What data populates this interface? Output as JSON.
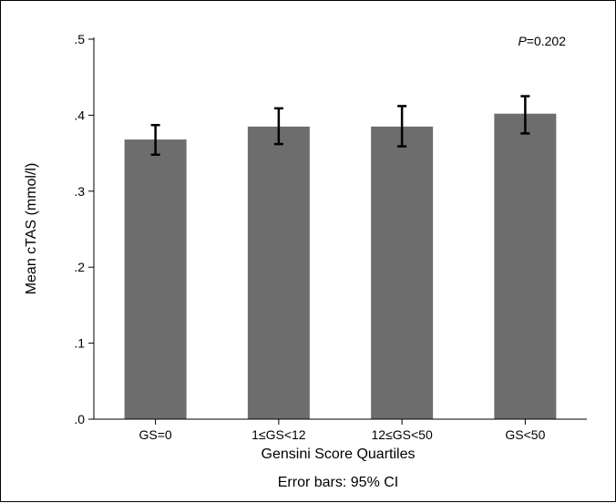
{
  "chart_data": {
    "type": "bar",
    "title": "",
    "annotation": {
      "prefix": "P",
      "text": "=0.202"
    },
    "categories": [
      "GS=0",
      "1≤GS<12",
      "12≤GS<50",
      "GS<50"
    ],
    "values": [
      0.368,
      0.385,
      0.385,
      0.402
    ],
    "ci_lower": [
      0.348,
      0.362,
      0.359,
      0.376
    ],
    "ci_upper": [
      0.387,
      0.409,
      0.412,
      0.425
    ],
    "xlabel": "Gensini Score Quartiles",
    "note": "Error bars: 95% CI",
    "ylabel": "Mean cTAS (mmol/l)",
    "ylim": [
      0,
      0.5
    ],
    "yticks": [
      0,
      0.1,
      0.2,
      0.3,
      0.4,
      0.5
    ],
    "ytick_labels": [
      ".0",
      ".1",
      ".2",
      ".3",
      ".4",
      ".5"
    ],
    "grid": false,
    "legend": "none",
    "bar_color": "#6d6d6d",
    "error_bar_color": "#000000"
  }
}
